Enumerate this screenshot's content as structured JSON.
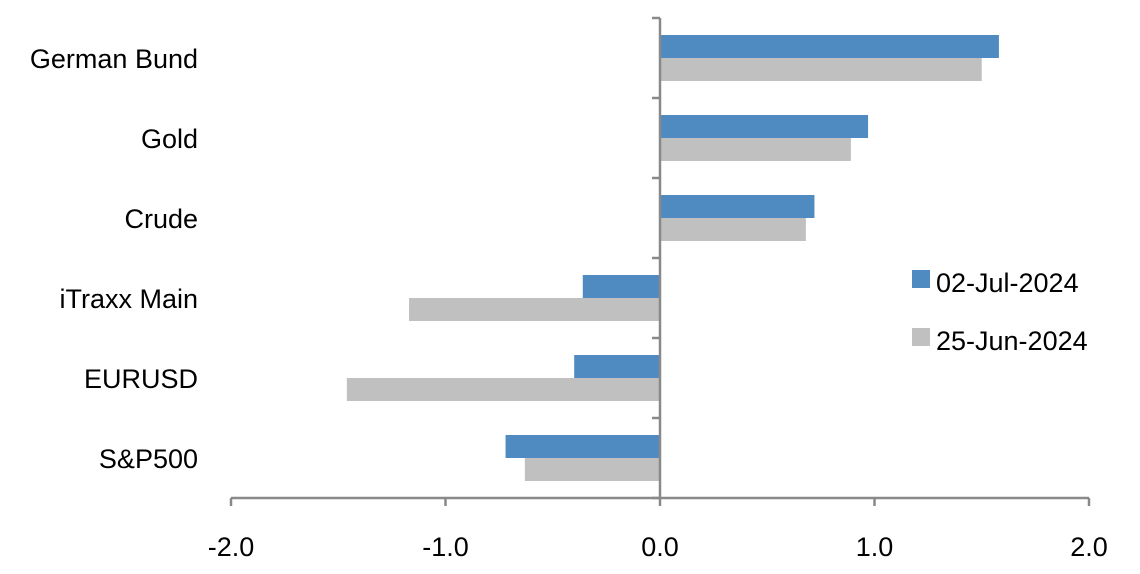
{
  "chart_data": {
    "type": "bar",
    "orientation": "horizontal",
    "categories": [
      "German Bund",
      "Gold",
      "Crude",
      "iTraxx Main",
      "EURUSD",
      "S&P500"
    ],
    "series": [
      {
        "name": "02-Jul-2024",
        "color": "#4f8bc0",
        "values": [
          1.58,
          0.97,
          0.72,
          -0.36,
          -0.4,
          -0.72
        ]
      },
      {
        "name": "25-Jun-2024",
        "color": "#c0c0c0",
        "values": [
          1.5,
          0.89,
          0.68,
          -1.17,
          -1.46,
          -0.63
        ]
      }
    ],
    "xlim": [
      -2.0,
      2.0
    ],
    "xticks": [
      "-2.0",
      "-1.0",
      "0.0",
      "1.0",
      "2.0"
    ],
    "grid": false,
    "legend_position": "right",
    "axis_color": "#898989"
  }
}
